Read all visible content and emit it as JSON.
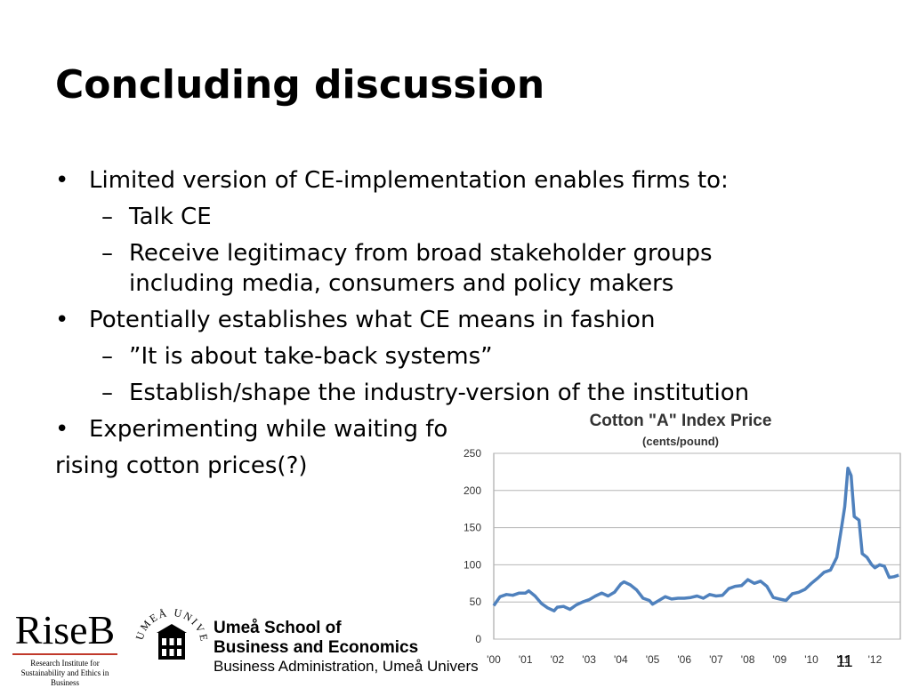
{
  "slide": {
    "title": "Concluding discussion",
    "page_number": "11"
  },
  "bullets": {
    "b1": "Limited version of CE-implementation enables firms to:",
    "b1_sub1": "Talk CE",
    "b1_sub2_line1": "Receive legitimacy from broad stakeholder groups",
    "b1_sub2_line2": "including media, consumers and policy makers",
    "b2": "Potentially establishes what CE means in fashion",
    "b2_sub1": "”It is about take-back systems”",
    "b2_sub2": "Establish/shape the industry-version of the institution",
    "b3": "Experimenting while waiting for",
    "b3_cont": "rising cotton prices(?)",
    "bullet_glyph": "•",
    "dash_glyph": "–"
  },
  "chart_data": {
    "type": "line",
    "title": "Cotton \"A\" Index Price",
    "subtitle": "(cents/pound)",
    "xlabel": "",
    "ylabel": "",
    "ylim": [
      0,
      250
    ],
    "yticks": [
      "0",
      "50",
      "100",
      "150",
      "200",
      "250"
    ],
    "xtick_labels": [
      "'00",
      "'01",
      "'02",
      "'03",
      "'04",
      "'05",
      "'06",
      "'07",
      "'08",
      "'09",
      "'10",
      "'11",
      "'12"
    ],
    "grid": true,
    "line_color": "#4f81bd",
    "series": [
      {
        "x": [
          2000.0,
          2000.2,
          2000.4,
          2000.6,
          2000.8,
          2001.0,
          2001.1,
          2001.3,
          2001.5,
          2001.7,
          2001.9,
          2002.0,
          2002.2,
          2002.4,
          2002.6,
          2002.8,
          2003.0,
          2003.2,
          2003.4,
          2003.6,
          2003.8,
          2004.0,
          2004.1,
          2004.3,
          2004.5,
          2004.7,
          2004.9,
          2005.0,
          2005.2,
          2005.4,
          2005.6,
          2005.8,
          2006.0,
          2006.2,
          2006.4,
          2006.6,
          2006.8,
          2007.0,
          2007.2,
          2007.4,
          2007.6,
          2007.8,
          2008.0,
          2008.2,
          2008.4,
          2008.6,
          2008.8,
          2009.0,
          2009.2,
          2009.4,
          2009.6,
          2009.8,
          2010.0,
          2010.2,
          2010.4,
          2010.6,
          2010.8,
          2010.95,
          2011.05,
          2011.15,
          2011.25,
          2011.35,
          2011.5,
          2011.6,
          2011.75,
          2011.9,
          2012.0,
          2012.15,
          2012.3,
          2012.45,
          2012.6,
          2012.75
        ],
        "values": [
          45,
          57,
          60,
          59,
          62,
          62,
          65,
          58,
          48,
          42,
          38,
          43,
          44,
          40,
          46,
          50,
          53,
          58,
          62,
          58,
          63,
          74,
          77,
          73,
          66,
          55,
          52,
          47,
          52,
          57,
          54,
          55,
          55,
          56,
          58,
          55,
          60,
          58,
          59,
          68,
          71,
          72,
          80,
          75,
          78,
          71,
          56,
          54,
          52,
          61,
          63,
          67,
          75,
          82,
          90,
          93,
          110,
          150,
          178,
          230,
          220,
          165,
          160,
          115,
          110,
          100,
          96,
          100,
          98,
          83,
          84,
          86
        ]
      }
    ]
  }
}
